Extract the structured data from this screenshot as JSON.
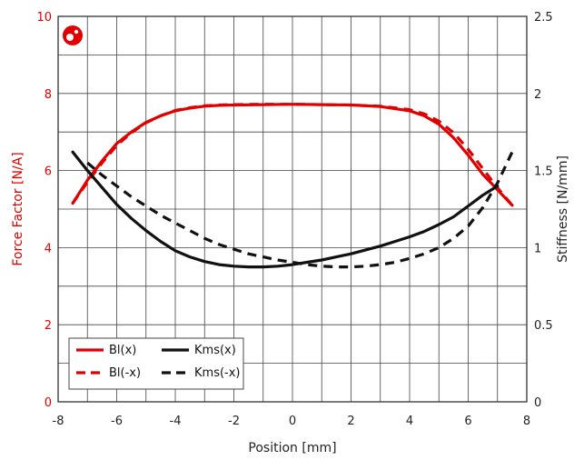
{
  "chart_data": {
    "type": "line",
    "title": "",
    "xlabel": "Position [mm]",
    "ylabel_left": "Force Factor [N/A]",
    "ylabel_right": "Stiffness [N/mm]",
    "xlim": [
      -8,
      8
    ],
    "ylim_left": [
      0,
      10
    ],
    "ylim_right": [
      0,
      2.5
    ],
    "x_ticks": [
      -8,
      -6,
      -4,
      -2,
      0,
      2,
      4,
      6,
      8
    ],
    "y_left_ticks": [
      0,
      2,
      4,
      6,
      8,
      10
    ],
    "y_right_ticks": [
      "0",
      "0.5",
      "1",
      "1.5",
      "2",
      "2.5"
    ],
    "grid": true,
    "legend_position": "bottom-left",
    "left_axis_color": "#e00000",
    "right_axis_color": "#111111",
    "series": [
      {
        "name": "Bl(x)",
        "axis": "left",
        "color": "#e00000",
        "dash": "solid",
        "x": [
          -7.5,
          -7,
          -6.5,
          -6,
          -5.5,
          -5,
          -4.5,
          -4,
          -3.5,
          -3,
          -2.5,
          -2,
          -1,
          0,
          1,
          2,
          3,
          4,
          4.5,
          5,
          5.5,
          6,
          6.5,
          7,
          7.5
        ],
        "y": [
          5.15,
          5.75,
          6.25,
          6.7,
          7.0,
          7.25,
          7.42,
          7.55,
          7.62,
          7.67,
          7.69,
          7.7,
          7.71,
          7.72,
          7.71,
          7.7,
          7.66,
          7.55,
          7.42,
          7.2,
          6.85,
          6.4,
          5.9,
          5.5,
          5.1
        ]
      },
      {
        "name": "Bl(-x)",
        "axis": "left",
        "color": "#e00000",
        "dash": "dashed",
        "x": [
          -7.5,
          -7,
          -6.5,
          -6,
          -5.5,
          -5,
          -4.5,
          -4,
          -3.5,
          -3,
          -2.5,
          -2,
          -1,
          0,
          1,
          2,
          3,
          4,
          4.5,
          5,
          5.5,
          6,
          6.5,
          7,
          7.5
        ],
        "y": [
          5.15,
          5.7,
          6.2,
          6.65,
          6.98,
          7.24,
          7.42,
          7.56,
          7.63,
          7.68,
          7.7,
          7.71,
          7.72,
          7.72,
          7.71,
          7.7,
          7.67,
          7.58,
          7.47,
          7.28,
          6.98,
          6.55,
          6.05,
          5.55,
          5.1
        ]
      },
      {
        "name": "Kms(x)",
        "axis": "right",
        "color": "#111111",
        "dash": "solid",
        "x": [
          -7.5,
          -7,
          -6.5,
          -6,
          -5.5,
          -5,
          -4.5,
          -4,
          -3.5,
          -3,
          -2.5,
          -2,
          -1.5,
          -1,
          -0.5,
          0,
          0.5,
          1,
          1.5,
          2,
          2.5,
          3,
          3.5,
          4,
          4.5,
          5,
          5.5,
          6,
          6.5,
          7
        ],
        "y": [
          1.62,
          1.5,
          1.39,
          1.28,
          1.19,
          1.11,
          1.04,
          0.98,
          0.94,
          0.91,
          0.89,
          0.88,
          0.875,
          0.875,
          0.88,
          0.89,
          0.905,
          0.92,
          0.94,
          0.96,
          0.985,
          1.01,
          1.04,
          1.07,
          1.105,
          1.15,
          1.2,
          1.27,
          1.34,
          1.4
        ]
      },
      {
        "name": "Kms(-x)",
        "axis": "right",
        "color": "#111111",
        "dash": "dashed",
        "x": [
          -7,
          -6.5,
          -6,
          -5.5,
          -5,
          -4.5,
          -4,
          -3.5,
          -3,
          -2.5,
          -2,
          -1.5,
          -1,
          -0.5,
          0,
          0.5,
          1,
          1.5,
          2,
          2.5,
          3,
          3.5,
          4,
          4.5,
          5,
          5.5,
          6,
          6.5,
          7,
          7.5
        ],
        "y": [
          1.55,
          1.47,
          1.4,
          1.33,
          1.27,
          1.21,
          1.16,
          1.11,
          1.06,
          1.02,
          0.99,
          0.96,
          0.94,
          0.92,
          0.905,
          0.89,
          0.88,
          0.875,
          0.875,
          0.88,
          0.89,
          0.905,
          0.93,
          0.96,
          1.0,
          1.06,
          1.14,
          1.26,
          1.42,
          1.62
        ]
      }
    ]
  }
}
